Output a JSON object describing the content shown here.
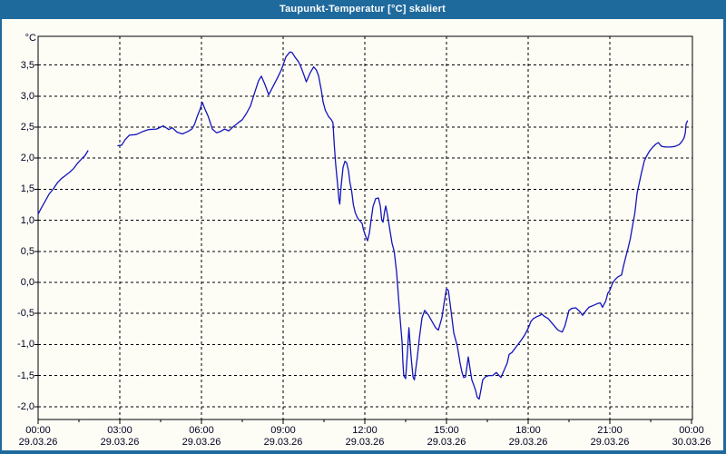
{
  "window": {
    "title": "Taupunkt-Temperatur [°C] skaliert"
  },
  "colors": {
    "frame_blue": "#1f6a9d",
    "title_text": "#ffffff",
    "background": "#fdfdf6",
    "plot_border": "#000000",
    "gridline": "#000000",
    "axis_text": "#000020",
    "series_line": "#1414be"
  },
  "chart_data": {
    "type": "line",
    "title": "Taupunkt-Temperatur [°C] skaliert",
    "y_unit_label": "°C",
    "grid": "dashed, on",
    "legend": "none",
    "ylim": [
      -2.2,
      3.95
    ],
    "xlim_hours": [
      0,
      24.05
    ],
    "y_ticks": [
      {
        "v": 3.5,
        "label": "3,5"
      },
      {
        "v": 3.0,
        "label": "3,0"
      },
      {
        "v": 2.5,
        "label": "2,5"
      },
      {
        "v": 2.0,
        "label": "2,0"
      },
      {
        "v": 1.5,
        "label": "1,5"
      },
      {
        "v": 1.0,
        "label": "1,0"
      },
      {
        "v": 0.5,
        "label": "0,5"
      },
      {
        "v": 0.0,
        "label": "0,0"
      },
      {
        "v": -0.5,
        "label": "-0,5"
      },
      {
        "v": -1.0,
        "label": "-1,0"
      },
      {
        "v": -1.5,
        "label": "-1,5"
      },
      {
        "v": -2.0,
        "label": "-2,0"
      }
    ],
    "x_ticks": [
      {
        "h": 0,
        "time": "00:00",
        "date": "29.03.26"
      },
      {
        "h": 3,
        "time": "03:00",
        "date": "29.03.26"
      },
      {
        "h": 6,
        "time": "06:00",
        "date": "29.03.26"
      },
      {
        "h": 9,
        "time": "09:00",
        "date": "29.03.26"
      },
      {
        "h": 12,
        "time": "12:00",
        "date": "29.03.26"
      },
      {
        "h": 15,
        "time": "15:00",
        "date": "29.03.26"
      },
      {
        "h": 18,
        "time": "18:00",
        "date": "29.03.26"
      },
      {
        "h": 21,
        "time": "21:00",
        "date": "29.03.26"
      },
      {
        "h": 24,
        "time": "00:00",
        "date": "30.03.26"
      }
    ],
    "x_minor_ticks": [
      1.5,
      4.5,
      7.5,
      10.5,
      13.5,
      16.5,
      19.5,
      22.5
    ],
    "series": [
      {
        "name": "Taupunkt-Temperatur",
        "color": "#1414be",
        "segments": [
          [
            [
              0.0,
              1.1
            ],
            [
              0.12,
              1.2
            ],
            [
              0.25,
              1.3
            ],
            [
              0.4,
              1.42
            ],
            [
              0.55,
              1.5
            ],
            [
              0.7,
              1.6
            ],
            [
              0.85,
              1.67
            ],
            [
              1.0,
              1.72
            ],
            [
              1.15,
              1.77
            ],
            [
              1.3,
              1.83
            ],
            [
              1.45,
              1.92
            ],
            [
              1.6,
              1.99
            ],
            [
              1.72,
              2.04
            ],
            [
              1.83,
              2.12
            ]
          ],
          [
            [
              2.93,
              2.2
            ],
            [
              3.07,
              2.21
            ],
            [
              3.2,
              2.3
            ],
            [
              3.35,
              2.37
            ],
            [
              3.6,
              2.38
            ],
            [
              3.85,
              2.43
            ],
            [
              4.05,
              2.46
            ],
            [
              4.35,
              2.47
            ],
            [
              4.6,
              2.52
            ],
            [
              4.8,
              2.46
            ],
            [
              4.93,
              2.49
            ],
            [
              5.1,
              2.42
            ],
            [
              5.3,
              2.39
            ],
            [
              5.5,
              2.43
            ],
            [
              5.65,
              2.47
            ],
            [
              5.75,
              2.55
            ],
            [
              5.85,
              2.68
            ],
            [
              5.95,
              2.79
            ],
            [
              6.03,
              2.9
            ],
            [
              6.12,
              2.8
            ],
            [
              6.25,
              2.67
            ],
            [
              6.4,
              2.47
            ],
            [
              6.55,
              2.41
            ],
            [
              6.7,
              2.43
            ],
            [
              6.85,
              2.47
            ],
            [
              7.0,
              2.44
            ],
            [
              7.15,
              2.5
            ],
            [
              7.35,
              2.57
            ],
            [
              7.5,
              2.62
            ],
            [
              7.65,
              2.72
            ],
            [
              7.8,
              2.84
            ],
            [
              7.95,
              3.05
            ],
            [
              8.1,
              3.25
            ],
            [
              8.2,
              3.32
            ],
            [
              8.32,
              3.2
            ],
            [
              8.47,
              3.02
            ],
            [
              8.67,
              3.19
            ],
            [
              8.8,
              3.3
            ],
            [
              8.93,
              3.42
            ],
            [
              9.0,
              3.5
            ],
            [
              9.1,
              3.63
            ],
            [
              9.25,
              3.71
            ],
            [
              9.33,
              3.7
            ],
            [
              9.43,
              3.63
            ],
            [
              9.57,
              3.55
            ],
            [
              9.67,
              3.45
            ],
            [
              9.77,
              3.33
            ],
            [
              9.85,
              3.23
            ],
            [
              10.0,
              3.38
            ],
            [
              10.12,
              3.47
            ],
            [
              10.22,
              3.42
            ],
            [
              10.3,
              3.33
            ],
            [
              10.4,
              3.1
            ],
            [
              10.47,
              2.9
            ],
            [
              10.55,
              2.77
            ],
            [
              10.67,
              2.67
            ],
            [
              10.77,
              2.62
            ],
            [
              10.83,
              2.57
            ],
            [
              10.88,
              2.2
            ],
            [
              10.93,
              1.9
            ],
            [
              11.0,
              1.58
            ],
            [
              11.05,
              1.33
            ],
            [
              11.08,
              1.26
            ],
            [
              11.13,
              1.55
            ],
            [
              11.2,
              1.85
            ],
            [
              11.27,
              1.95
            ],
            [
              11.33,
              1.93
            ],
            [
              11.4,
              1.8
            ],
            [
              11.45,
              1.62
            ],
            [
              11.52,
              1.46
            ],
            [
              11.58,
              1.25
            ],
            [
              11.65,
              1.12
            ],
            [
              11.73,
              1.04
            ],
            [
              11.8,
              1.0
            ],
            [
              11.9,
              0.95
            ],
            [
              11.95,
              0.85
            ],
            [
              12.0,
              0.78
            ],
            [
              12.07,
              0.7
            ],
            [
              12.1,
              0.67
            ],
            [
              12.17,
              0.8
            ],
            [
              12.23,
              1.0
            ],
            [
              12.3,
              1.22
            ],
            [
              12.4,
              1.35
            ],
            [
              12.5,
              1.36
            ],
            [
              12.57,
              1.23
            ],
            [
              12.62,
              1.01
            ],
            [
              12.67,
              0.97
            ],
            [
              12.73,
              1.15
            ],
            [
              12.77,
              1.23
            ],
            [
              12.83,
              1.09
            ],
            [
              12.9,
              0.9
            ],
            [
              13.0,
              0.63
            ],
            [
              13.08,
              0.5
            ],
            [
              13.17,
              0.15
            ],
            [
              13.23,
              -0.2
            ],
            [
              13.3,
              -0.6
            ],
            [
              13.37,
              -0.97
            ],
            [
              13.4,
              -1.3
            ],
            [
              13.43,
              -1.5
            ],
            [
              13.5,
              -1.55
            ],
            [
              13.57,
              -1.1
            ],
            [
              13.62,
              -0.73
            ],
            [
              13.7,
              -1.2
            ],
            [
              13.77,
              -1.52
            ],
            [
              13.82,
              -1.57
            ],
            [
              13.93,
              -1.2
            ],
            [
              14.0,
              -0.91
            ],
            [
              14.1,
              -0.57
            ],
            [
              14.2,
              -0.45
            ],
            [
              14.33,
              -0.52
            ],
            [
              14.47,
              -0.63
            ],
            [
              14.6,
              -0.73
            ],
            [
              14.7,
              -0.77
            ],
            [
              14.83,
              -0.57
            ],
            [
              14.93,
              -0.28
            ],
            [
              15.0,
              -0.1
            ],
            [
              15.07,
              -0.13
            ],
            [
              15.17,
              -0.47
            ],
            [
              15.27,
              -0.82
            ],
            [
              15.4,
              -1.03
            ],
            [
              15.5,
              -1.3
            ],
            [
              15.57,
              -1.45
            ],
            [
              15.63,
              -1.53
            ],
            [
              15.7,
              -1.52
            ],
            [
              15.8,
              -1.2
            ],
            [
              15.87,
              -1.4
            ],
            [
              15.93,
              -1.57
            ],
            [
              16.0,
              -1.65
            ],
            [
              16.07,
              -1.74
            ],
            [
              16.13,
              -1.85
            ],
            [
              16.2,
              -1.88
            ],
            [
              16.27,
              -1.72
            ],
            [
              16.33,
              -1.57
            ],
            [
              16.43,
              -1.52
            ],
            [
              16.55,
              -1.5
            ],
            [
              16.7,
              -1.5
            ],
            [
              16.83,
              -1.45
            ],
            [
              16.93,
              -1.5
            ],
            [
              17.0,
              -1.53
            ],
            [
              17.13,
              -1.4
            ],
            [
              17.23,
              -1.3
            ],
            [
              17.3,
              -1.16
            ],
            [
              17.4,
              -1.13
            ],
            [
              17.57,
              -1.03
            ],
            [
              17.73,
              -0.94
            ],
            [
              17.87,
              -0.85
            ],
            [
              18.0,
              -0.74
            ],
            [
              18.1,
              -0.63
            ],
            [
              18.2,
              -0.58
            ],
            [
              18.33,
              -0.55
            ],
            [
              18.43,
              -0.53
            ],
            [
              18.5,
              -0.51
            ],
            [
              18.6,
              -0.55
            ],
            [
              18.73,
              -0.58
            ],
            [
              18.9,
              -0.67
            ],
            [
              19.1,
              -0.77
            ],
            [
              19.25,
              -0.8
            ],
            [
              19.35,
              -0.7
            ],
            [
              19.5,
              -0.45
            ],
            [
              19.6,
              -0.42
            ],
            [
              19.75,
              -0.41
            ],
            [
              19.9,
              -0.47
            ],
            [
              20.0,
              -0.53
            ],
            [
              20.1,
              -0.47
            ],
            [
              20.23,
              -0.4
            ],
            [
              20.4,
              -0.37
            ],
            [
              20.55,
              -0.34
            ],
            [
              20.65,
              -0.33
            ],
            [
              20.73,
              -0.4
            ],
            [
              20.85,
              -0.3
            ],
            [
              20.93,
              -0.17
            ],
            [
              21.0,
              -0.13
            ],
            [
              21.1,
              -0.01
            ],
            [
              21.2,
              0.05
            ],
            [
              21.3,
              0.09
            ],
            [
              21.43,
              0.12
            ],
            [
              21.5,
              0.26
            ],
            [
              21.58,
              0.4
            ],
            [
              21.67,
              0.55
            ],
            [
              21.75,
              0.7
            ],
            [
              21.83,
              0.9
            ],
            [
              21.92,
              1.12
            ],
            [
              22.0,
              1.43
            ],
            [
              22.08,
              1.6
            ],
            [
              22.17,
              1.78
            ],
            [
              22.27,
              1.96
            ],
            [
              22.35,
              2.03
            ],
            [
              22.45,
              2.11
            ],
            [
              22.58,
              2.18
            ],
            [
              22.7,
              2.23
            ],
            [
              22.78,
              2.25
            ],
            [
              22.9,
              2.19
            ],
            [
              23.05,
              2.18
            ],
            [
              23.25,
              2.18
            ],
            [
              23.4,
              2.19
            ],
            [
              23.55,
              2.22
            ],
            [
              23.65,
              2.27
            ],
            [
              23.72,
              2.32
            ],
            [
              23.77,
              2.4
            ],
            [
              23.8,
              2.55
            ],
            [
              23.85,
              2.6
            ]
          ]
        ]
      }
    ]
  }
}
